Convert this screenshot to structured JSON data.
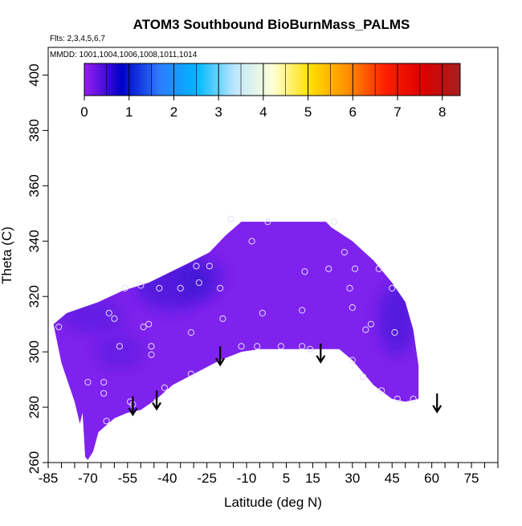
{
  "chart_data": {
    "type": "heatmap",
    "title": "ATOM3 Southbound BioBurnMass_PALMS",
    "flights_note": "Flts: 2,3,4,5,6,7",
    "dates_note": "MMDD: 1001,1004,1006,1008,1011,1014",
    "xlabel": "Latitude (deg N)",
    "ylabel": "Theta (C)",
    "xlim": [
      -85,
      85
    ],
    "ylim": [
      260,
      410
    ],
    "x_tick_labels": [
      "-85",
      "-70",
      "-55",
      "-40",
      "-25",
      "-10",
      "5",
      "15",
      "30",
      "45",
      "60",
      "75"
    ],
    "x_ticks": [
      -85,
      -70,
      -55,
      -40,
      -25,
      -10,
      5,
      15,
      30,
      45,
      60,
      75
    ],
    "x_minor_ticks": [
      -80,
      -75,
      -65,
      -60,
      -50,
      -45,
      -35,
      -30,
      -20,
      -15,
      -5,
      0,
      10,
      20,
      25,
      35,
      40,
      50,
      55,
      65,
      70,
      80,
      85
    ],
    "y_ticks": [
      260,
      280,
      300,
      320,
      340,
      360,
      380,
      400
    ],
    "y_tick_labels": [
      "260",
      "280",
      "300",
      "320",
      "340",
      "360",
      "380",
      "400"
    ],
    "colorbar": {
      "min": 0,
      "max": 8.4,
      "tick_values": [
        0,
        1,
        2,
        3,
        4,
        5,
        6,
        7,
        8
      ],
      "tick_labels": [
        "0",
        "1",
        "2",
        "3",
        "4",
        "5",
        "6",
        "7",
        "8"
      ],
      "colors": [
        "#9A1EF0",
        "#0000C8",
        "#2E7BFF",
        "#00B8FF",
        "#BDE7FF",
        "#FFFFD8",
        "#FFE000",
        "#FF9000",
        "#FF2000",
        "#DD0000",
        "#A52020"
      ]
    },
    "region_color_base": "#7F22EE",
    "region_color_dark": "#3018D0",
    "field_upper_boundary": [
      [
        -83,
        310
      ],
      [
        -78,
        314
      ],
      [
        -66,
        318
      ],
      [
        -57,
        322
      ],
      [
        -47,
        325
      ],
      [
        -32,
        332
      ],
      [
        -24,
        336
      ],
      [
        -18,
        342
      ],
      [
        -12,
        347
      ],
      [
        -5,
        347
      ],
      [
        5,
        347
      ],
      [
        20,
        347
      ],
      [
        22,
        345
      ],
      [
        30,
        340
      ],
      [
        38,
        333
      ],
      [
        45,
        325
      ],
      [
        50,
        318
      ],
      [
        53,
        308
      ],
      [
        55,
        295
      ],
      [
        55,
        283
      ]
    ],
    "field_lower_boundary": [
      [
        55,
        283
      ],
      [
        50,
        282
      ],
      [
        45,
        283
      ],
      [
        38,
        288
      ],
      [
        30,
        297
      ],
      [
        25,
        301
      ],
      [
        15,
        301
      ],
      [
        5,
        301
      ],
      [
        -5,
        301
      ],
      [
        -12,
        300
      ],
      [
        -20,
        297
      ],
      [
        -28,
        293
      ],
      [
        -38,
        288
      ],
      [
        -44,
        283
      ],
      [
        -50,
        279
      ],
      [
        -55,
        278
      ],
      [
        -60,
        276
      ],
      [
        -66,
        271
      ],
      [
        -68,
        264
      ],
      [
        -70,
        261
      ],
      [
        -71,
        262
      ],
      [
        -72,
        278
      ],
      [
        -73,
        274
      ],
      [
        -75,
        282
      ],
      [
        -80,
        296
      ]
    ],
    "dark_patches": [
      {
        "x": -38,
        "y": 324,
        "rx": 14,
        "ry": 9,
        "opacity": 0.55
      },
      {
        "x": -27,
        "y": 327,
        "rx": 8,
        "ry": 7,
        "opacity": 0.5
      },
      {
        "x": 47,
        "y": 312,
        "rx": 7,
        "ry": 13,
        "opacity": 0.55
      },
      {
        "x": -68,
        "y": 313,
        "rx": 12,
        "ry": 6,
        "opacity": 0.35
      },
      {
        "x": -58,
        "y": 300,
        "rx": 9,
        "ry": 6,
        "opacity": 0.3
      }
    ],
    "sample_points": [
      [
        -81,
        309
      ],
      [
        -70,
        289
      ],
      [
        -64,
        289
      ],
      [
        -64,
        285
      ],
      [
        -63,
        275
      ],
      [
        -62,
        314
      ],
      [
        -60,
        312
      ],
      [
        -58,
        302
      ],
      [
        -56,
        323
      ],
      [
        -54,
        282
      ],
      [
        -53,
        281
      ],
      [
        -50,
        324
      ],
      [
        -49,
        309
      ],
      [
        -47,
        310
      ],
      [
        -46,
        302
      ],
      [
        -46,
        299
      ],
      [
        -44,
        282
      ],
      [
        -43,
        323
      ],
      [
        -41,
        287
      ],
      [
        -35,
        323
      ],
      [
        -31,
        307
      ],
      [
        -31,
        292
      ],
      [
        -29,
        331
      ],
      [
        -28,
        325
      ],
      [
        -24,
        331
      ],
      [
        -20,
        323
      ],
      [
        -19,
        312
      ],
      [
        -16,
        348
      ],
      [
        -12,
        302
      ],
      [
        -8,
        340
      ],
      [
        -6,
        302
      ],
      [
        -4,
        314
      ],
      [
        -2,
        347
      ],
      [
        3,
        302
      ],
      [
        11,
        315
      ],
      [
        11,
        302
      ],
      [
        12,
        329
      ],
      [
        14,
        301
      ],
      [
        21,
        330
      ],
      [
        23,
        347
      ],
      [
        27,
        336
      ],
      [
        29,
        323
      ],
      [
        30,
        316
      ],
      [
        30,
        297
      ],
      [
        31,
        330
      ],
      [
        34,
        291
      ],
      [
        34,
        291
      ],
      [
        35,
        308
      ],
      [
        37,
        310
      ],
      [
        40,
        330
      ],
      [
        41,
        286
      ],
      [
        45,
        323
      ],
      [
        46,
        307
      ],
      [
        47,
        283
      ],
      [
        53,
        283
      ]
    ],
    "arrows": [
      [
        -53,
        284
      ],
      [
        -44,
        286
      ],
      [
        -20,
        302
      ],
      [
        18,
        303
      ],
      [
        62,
        285
      ]
    ]
  }
}
